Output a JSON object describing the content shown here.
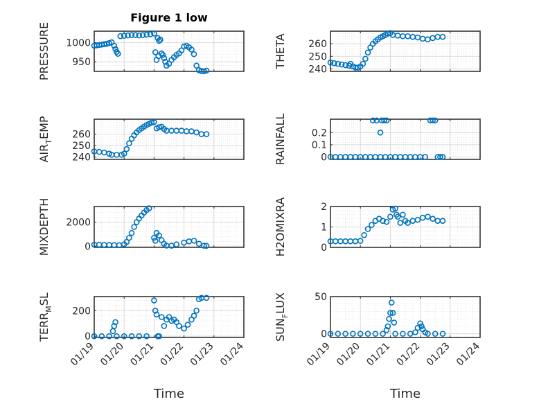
{
  "figure": {
    "background": "#ffffff",
    "axes_color": "#262626",
    "grid_color": "#d9d9d9",
    "marker_color": "#0072BD"
  },
  "chart_data": [
    {
      "type": "scatter",
      "title": "Figure 1 low",
      "ylabel": "PRESSURE",
      "xlabel": "",
      "xlim": [
        "01/19",
        "01/24"
      ],
      "ylim": [
        925,
        1030
      ],
      "yticks": [
        950,
        1000
      ],
      "grid": true,
      "xticklabels_visible": false,
      "points": [
        [
          "01/19 00:00",
          992
        ],
        [
          "01/19 02:00",
          993
        ],
        [
          "01/19 04:00",
          994
        ],
        [
          "01/19 06:00",
          995
        ],
        [
          "01/19 08:00",
          996
        ],
        [
          "01/19 10:00",
          997
        ],
        [
          "01/19 12:00",
          999
        ],
        [
          "01/19 14:00",
          1001
        ],
        [
          "01/19 16:00",
          992
        ],
        [
          "01/19 17:00",
          983
        ],
        [
          "01/19 18:00",
          976
        ],
        [
          "01/19 19:00",
          971
        ],
        [
          "01/19 21:00",
          1017
        ],
        [
          "01/20 00:00",
          1018
        ],
        [
          "01/20 03:00",
          1019
        ],
        [
          "01/20 06:00",
          1020
        ],
        [
          "01/20 09:00",
          1020
        ],
        [
          "01/20 12:00",
          1019
        ],
        [
          "01/20 15:00",
          1020
        ],
        [
          "01/20 18:00",
          1021
        ],
        [
          "01/20 21:00",
          1022
        ],
        [
          "01/21 00:00",
          1024
        ],
        [
          "01/21 03:00",
          1012
        ],
        [
          "01/21 04:00",
          1005
        ],
        [
          "01/21 05:00",
          1008
        ],
        [
          "01/21 01:00",
          975
        ],
        [
          "01/21 02:00",
          955
        ],
        [
          "01/21 03:30",
          965
        ],
        [
          "01/21 06:00",
          972
        ],
        [
          "01/21 07:00",
          968
        ],
        [
          "01/21 08:00",
          960
        ],
        [
          "01/21 09:00",
          950
        ],
        [
          "01/21 10:00",
          940
        ],
        [
          "01/21 12:00",
          945
        ],
        [
          "01/21 14:00",
          955
        ],
        [
          "01/21 16:00",
          962
        ],
        [
          "01/21 18:00",
          968
        ],
        [
          "01/21 20:00",
          972
        ],
        [
          "01/21 22:00",
          980
        ],
        [
          "01/22 00:00",
          990
        ],
        [
          "01/22 02:00",
          992
        ],
        [
          "01/22 04:00",
          988
        ],
        [
          "01/22 06:00",
          982
        ],
        [
          "01/22 08:00",
          970
        ],
        [
          "01/22 10:00",
          940
        ],
        [
          "01/22 12:00",
          928
        ],
        [
          "01/22 14:00",
          926
        ],
        [
          "01/22 16:00",
          925
        ],
        [
          "01/22 18:00",
          927
        ]
      ]
    },
    {
      "type": "scatter",
      "title": "",
      "ylabel": "THETA",
      "xlabel": "",
      "xlim": [
        "01/19",
        "01/24"
      ],
      "ylim": [
        238,
        270
      ],
      "yticks": [
        240,
        250,
        260
      ],
      "grid": true,
      "xticklabels_visible": false,
      "points": [
        [
          "01/19 00:00",
          245
        ],
        [
          "01/19 03:00",
          244.5
        ],
        [
          "01/19 06:00",
          244
        ],
        [
          "01/19 09:00",
          243.5
        ],
        [
          "01/19 12:00",
          243
        ],
        [
          "01/19 15:00",
          242.5
        ],
        [
          "01/19 16:00",
          244
        ],
        [
          "01/19 18:00",
          242
        ],
        [
          "01/19 20:00",
          241
        ],
        [
          "01/19 22:00",
          241
        ],
        [
          "01/20 00:00",
          242
        ],
        [
          "01/20 02:00",
          244
        ],
        [
          "01/20 04:00",
          248
        ],
        [
          "01/20 06:00",
          253
        ],
        [
          "01/20 08:00",
          257
        ],
        [
          "01/20 10:00",
          260
        ],
        [
          "01/20 12:00",
          262
        ],
        [
          "01/20 14:00",
          263.5
        ],
        [
          "01/20 16:00",
          265
        ],
        [
          "01/20 18:00",
          266
        ],
        [
          "01/20 20:00",
          267
        ],
        [
          "01/20 22:00",
          268
        ],
        [
          "01/21 00:00",
          268.5
        ],
        [
          "01/21 02:00",
          267
        ],
        [
          "01/21 06:00",
          266.5
        ],
        [
          "01/21 10:00",
          266
        ],
        [
          "01/21 14:00",
          266
        ],
        [
          "01/21 18:00",
          265.5
        ],
        [
          "01/21 22:00",
          265
        ],
        [
          "01/22 02:00",
          264
        ],
        [
          "01/22 06:00",
          263.5
        ],
        [
          "01/22 10:00",
          264.5
        ],
        [
          "01/22 14:00",
          265.5
        ],
        [
          "01/22 18:00",
          265.5
        ]
      ]
    },
    {
      "type": "scatter",
      "title": "",
      "ylabel": "AIR_TEMP",
      "xlabel": "",
      "xlim": [
        "01/19",
        "01/24"
      ],
      "ylim": [
        238,
        273
      ],
      "yticks": [
        240,
        250,
        260
      ],
      "grid": true,
      "xticklabels_visible": false,
      "points": [
        [
          "01/19 00:00",
          245
        ],
        [
          "01/19 04:00",
          244.5
        ],
        [
          "01/19 08:00",
          244
        ],
        [
          "01/19 12:00",
          243
        ],
        [
          "01/19 14:00",
          242
        ],
        [
          "01/19 18:00",
          242
        ],
        [
          "01/19 22:00",
          242
        ],
        [
          "01/20 00:00",
          243
        ],
        [
          "01/20 02:00",
          247
        ],
        [
          "01/20 04:00",
          252
        ],
        [
          "01/20 06:00",
          256
        ],
        [
          "01/20 08:00",
          259
        ],
        [
          "01/20 10:00",
          261.5
        ],
        [
          "01/20 12:00",
          263.5
        ],
        [
          "01/20 14:00",
          265
        ],
        [
          "01/20 16:00",
          266.5
        ],
        [
          "01/20 18:00",
          268
        ],
        [
          "01/20 20:00",
          269
        ],
        [
          "01/20 22:00",
          270
        ],
        [
          "01/21 00:00",
          270.5
        ],
        [
          "01/21 02:00",
          265
        ],
        [
          "01/21 04:00",
          266
        ],
        [
          "01/21 06:00",
          266.5
        ],
        [
          "01/21 08:00",
          264.5
        ],
        [
          "01/21 10:00",
          263
        ],
        [
          "01/21 14:00",
          263
        ],
        [
          "01/21 18:00",
          263
        ],
        [
          "01/21 22:00",
          263
        ],
        [
          "01/22 02:00",
          262.5
        ],
        [
          "01/22 06:00",
          262.5
        ],
        [
          "01/22 10:00",
          261.5
        ],
        [
          "01/22 14:00",
          260
        ],
        [
          "01/22 18:00",
          260
        ]
      ]
    },
    {
      "type": "scatter",
      "title": "",
      "ylabel": "RAINFALL",
      "xlabel": "",
      "xlim": [
        "01/19",
        "01/24"
      ],
      "ylim": [
        -0.02,
        0.31
      ],
      "yticks": [
        0,
        0.1,
        0.2
      ],
      "grid": true,
      "xticklabels_visible": false,
      "points": [
        [
          "01/19 00:00",
          0
        ],
        [
          "01/19 04:00",
          0
        ],
        [
          "01/19 08:00",
          0
        ],
        [
          "01/19 12:00",
          0
        ],
        [
          "01/19 16:00",
          0
        ],
        [
          "01/19 20:00",
          0
        ],
        [
          "01/20 00:00",
          0
        ],
        [
          "01/20 04:00",
          0
        ],
        [
          "01/20 08:00",
          0
        ],
        [
          "01/20 12:00",
          0
        ],
        [
          "01/20 16:00",
          0
        ],
        [
          "01/20 20:00",
          0
        ],
        [
          "01/20 10:00",
          0.3
        ],
        [
          "01/20 13:00",
          0.3
        ],
        [
          "01/20 16:00",
          0.2
        ],
        [
          "01/20 17:00",
          0.3
        ],
        [
          "01/20 19:00",
          0.3
        ],
        [
          "01/20 21:00",
          0.3
        ],
        [
          "01/21 00:00",
          0
        ],
        [
          "01/21 04:00",
          0
        ],
        [
          "01/21 08:00",
          0
        ],
        [
          "01/21 12:00",
          0
        ],
        [
          "01/21 16:00",
          0
        ],
        [
          "01/21 20:00",
          0
        ],
        [
          "01/22 00:00",
          0
        ],
        [
          "01/22 04:00",
          0
        ],
        [
          "01/22 08:00",
          0.3
        ],
        [
          "01/22 10:00",
          0.3
        ],
        [
          "01/22 12:00",
          0.3
        ],
        [
          "01/22 14:00",
          0
        ],
        [
          "01/22 16:00",
          0
        ],
        [
          "01/22 18:00",
          0
        ]
      ]
    },
    {
      "type": "scatter",
      "title": "",
      "ylabel": "MIXDEPTH",
      "xlabel": "",
      "xlim": [
        "01/19",
        "01/24"
      ],
      "ylim": [
        -100,
        3300
      ],
      "yticks": [
        0,
        2000
      ],
      "grid": true,
      "xticklabels_visible": false,
      "points": [
        [
          "01/19 00:00",
          130
        ],
        [
          "01/19 04:00",
          120
        ],
        [
          "01/19 08:00",
          110
        ],
        [
          "01/19 12:00",
          100
        ],
        [
          "01/19 16:00",
          90
        ],
        [
          "01/19 20:00",
          80
        ],
        [
          "01/20 00:00",
          160
        ],
        [
          "01/20 02:00",
          350
        ],
        [
          "01/20 04:00",
          700
        ],
        [
          "01/20 06:00",
          1100
        ],
        [
          "01/20 08:00",
          1600
        ],
        [
          "01/20 10:00",
          2000
        ],
        [
          "01/20 12:00",
          2300
        ],
        [
          "01/20 14:00",
          2550
        ],
        [
          "01/20 16:00",
          2800
        ],
        [
          "01/20 18:00",
          3000
        ],
        [
          "01/20 20:00",
          3150
        ],
        [
          "01/21 00:00",
          700
        ],
        [
          "01/21 01:00",
          450
        ],
        [
          "01/21 02:00",
          1100
        ],
        [
          "01/21 04:00",
          900
        ],
        [
          "01/21 06:00",
          500
        ],
        [
          "01/21 08:00",
          200
        ],
        [
          "01/21 10:00",
          50
        ],
        [
          "01/21 14:00",
          40
        ],
        [
          "01/21 18:00",
          150
        ],
        [
          "01/22 00:00",
          300
        ],
        [
          "01/22 04:00",
          400
        ],
        [
          "01/22 08:00",
          450
        ],
        [
          "01/22 12:00",
          200
        ],
        [
          "01/22 16:00",
          40
        ],
        [
          "01/22 18:00",
          30
        ]
      ]
    },
    {
      "type": "scatter",
      "title": "",
      "ylabel": "H2OMIXRA",
      "xlabel": "",
      "xlim": [
        "01/19",
        "01/24"
      ],
      "ylim": [
        0,
        2
      ],
      "yticks": [
        0,
        1,
        2
      ],
      "grid": true,
      "xticklabels_visible": false,
      "points": [
        [
          "01/19 00:00",
          0.3
        ],
        [
          "01/19 04:00",
          0.3
        ],
        [
          "01/19 08:00",
          0.3
        ],
        [
          "01/19 12:00",
          0.3
        ],
        [
          "01/19 16:00",
          0.3
        ],
        [
          "01/19 20:00",
          0.3
        ],
        [
          "01/20 00:00",
          0.32
        ],
        [
          "01/20 03:00",
          0.6
        ],
        [
          "01/20 06:00",
          0.9
        ],
        [
          "01/20 09:00",
          1.1
        ],
        [
          "01/20 12:00",
          1.3
        ],
        [
          "01/20 15:00",
          1.4
        ],
        [
          "01/20 18:00",
          1.3
        ],
        [
          "01/20 21:00",
          1.25
        ],
        [
          "01/21 00:00",
          1.5
        ],
        [
          "01/21 02:00",
          1.85
        ],
        [
          "01/21 04:00",
          1.9
        ],
        [
          "01/21 05:00",
          1.6
        ],
        [
          "01/21 06:00",
          1.5
        ],
        [
          "01/21 08:00",
          1.2
        ],
        [
          "01/21 10:00",
          1.6
        ],
        [
          "01/21 12:00",
          1.3
        ],
        [
          "01/21 14:00",
          1.2
        ],
        [
          "01/21 18:00",
          1.3
        ],
        [
          "01/21 22:00",
          1.35
        ],
        [
          "01/22 02:00",
          1.45
        ],
        [
          "01/22 06:00",
          1.5
        ],
        [
          "01/22 10:00",
          1.4
        ],
        [
          "01/22 14:00",
          1.3
        ],
        [
          "01/22 18:00",
          1.3
        ]
      ]
    },
    {
      "type": "scatter",
      "title": "",
      "ylabel": "TERR_MSL",
      "xlabel": "Time",
      "xlim": [
        "01/19",
        "01/24"
      ],
      "ylim": [
        -10,
        310
      ],
      "yticks": [
        0,
        200
      ],
      "grid": true,
      "xticklabels": [
        "01/19",
        "01/20",
        "01/21",
        "01/22",
        "01/23",
        "01/24"
      ],
      "points": [
        [
          "01/19 00:00",
          0
        ],
        [
          "01/19 06:00",
          0
        ],
        [
          "01/19 12:00",
          0
        ],
        [
          "01/19 15:00",
          40
        ],
        [
          "01/19 16:00",
          80
        ],
        [
          "01/19 17:00",
          110
        ],
        [
          "01/19 18:00",
          0
        ],
        [
          "01/20 00:00",
          0
        ],
        [
          "01/20 06:00",
          0
        ],
        [
          "01/20 12:00",
          0
        ],
        [
          "01/20 18:00",
          0
        ],
        [
          "01/21 00:00",
          280
        ],
        [
          "01/21 01:00",
          200
        ],
        [
          "01/21 02:00",
          170
        ],
        [
          "01/21 03:00",
          0
        ],
        [
          "01/21 04:00",
          0
        ],
        [
          "01/21 06:00",
          150
        ],
        [
          "01/21 08:00",
          80
        ],
        [
          "01/21 10:00",
          130
        ],
        [
          "01/21 12:00",
          150
        ],
        [
          "01/21 14:00",
          120
        ],
        [
          "01/21 16:00",
          130
        ],
        [
          "01/21 18:00",
          110
        ],
        [
          "01/21 20:00",
          80
        ],
        [
          "01/22 00:00",
          60
        ],
        [
          "01/22 03:00",
          90
        ],
        [
          "01/22 06:00",
          130
        ],
        [
          "01/22 08:00",
          160
        ],
        [
          "01/22 10:00",
          200
        ],
        [
          "01/22 12:00",
          290
        ],
        [
          "01/22 14:00",
          300
        ],
        [
          "01/22 18:00",
          300
        ]
      ]
    },
    {
      "type": "scatter",
      "title": "",
      "ylabel": "SUN_FLUX",
      "xlabel": "Time",
      "xlim": [
        "01/19",
        "01/24"
      ],
      "ylim": [
        -5,
        50
      ],
      "yticks": [
        0,
        50
      ],
      "grid": true,
      "xticklabels": [
        "01/19",
        "01/20",
        "01/21",
        "01/22",
        "01/23",
        "01/24"
      ],
      "points": [
        [
          "01/19 00:00",
          0
        ],
        [
          "01/19 06:00",
          0
        ],
        [
          "01/19 12:00",
          0
        ],
        [
          "01/19 18:00",
          0
        ],
        [
          "01/20 00:00",
          0
        ],
        [
          "01/20 06:00",
          0
        ],
        [
          "01/20 12:00",
          0
        ],
        [
          "01/20 18:00",
          0
        ],
        [
          "01/20 21:00",
          5
        ],
        [
          "01/20 22:00",
          10
        ],
        [
          "01/20 23:00",
          20
        ],
        [
          "01/21 00:00",
          28
        ],
        [
          "01/21 01:00",
          42
        ],
        [
          "01/21 02:00",
          28
        ],
        [
          "01/21 03:00",
          15
        ],
        [
          "01/21 04:00",
          0
        ],
        [
          "01/21 10:00",
          0
        ],
        [
          "01/21 16:00",
          0
        ],
        [
          "01/21 20:00",
          2
        ],
        [
          "01/21 22:00",
          8
        ],
        [
          "01/22 00:00",
          14
        ],
        [
          "01/22 01:00",
          10
        ],
        [
          "01/22 02:00",
          6
        ],
        [
          "01/22 04:00",
          2
        ],
        [
          "01/22 06:00",
          0
        ],
        [
          "01/22 12:00",
          0
        ],
        [
          "01/22 18:00",
          0
        ]
      ]
    }
  ]
}
